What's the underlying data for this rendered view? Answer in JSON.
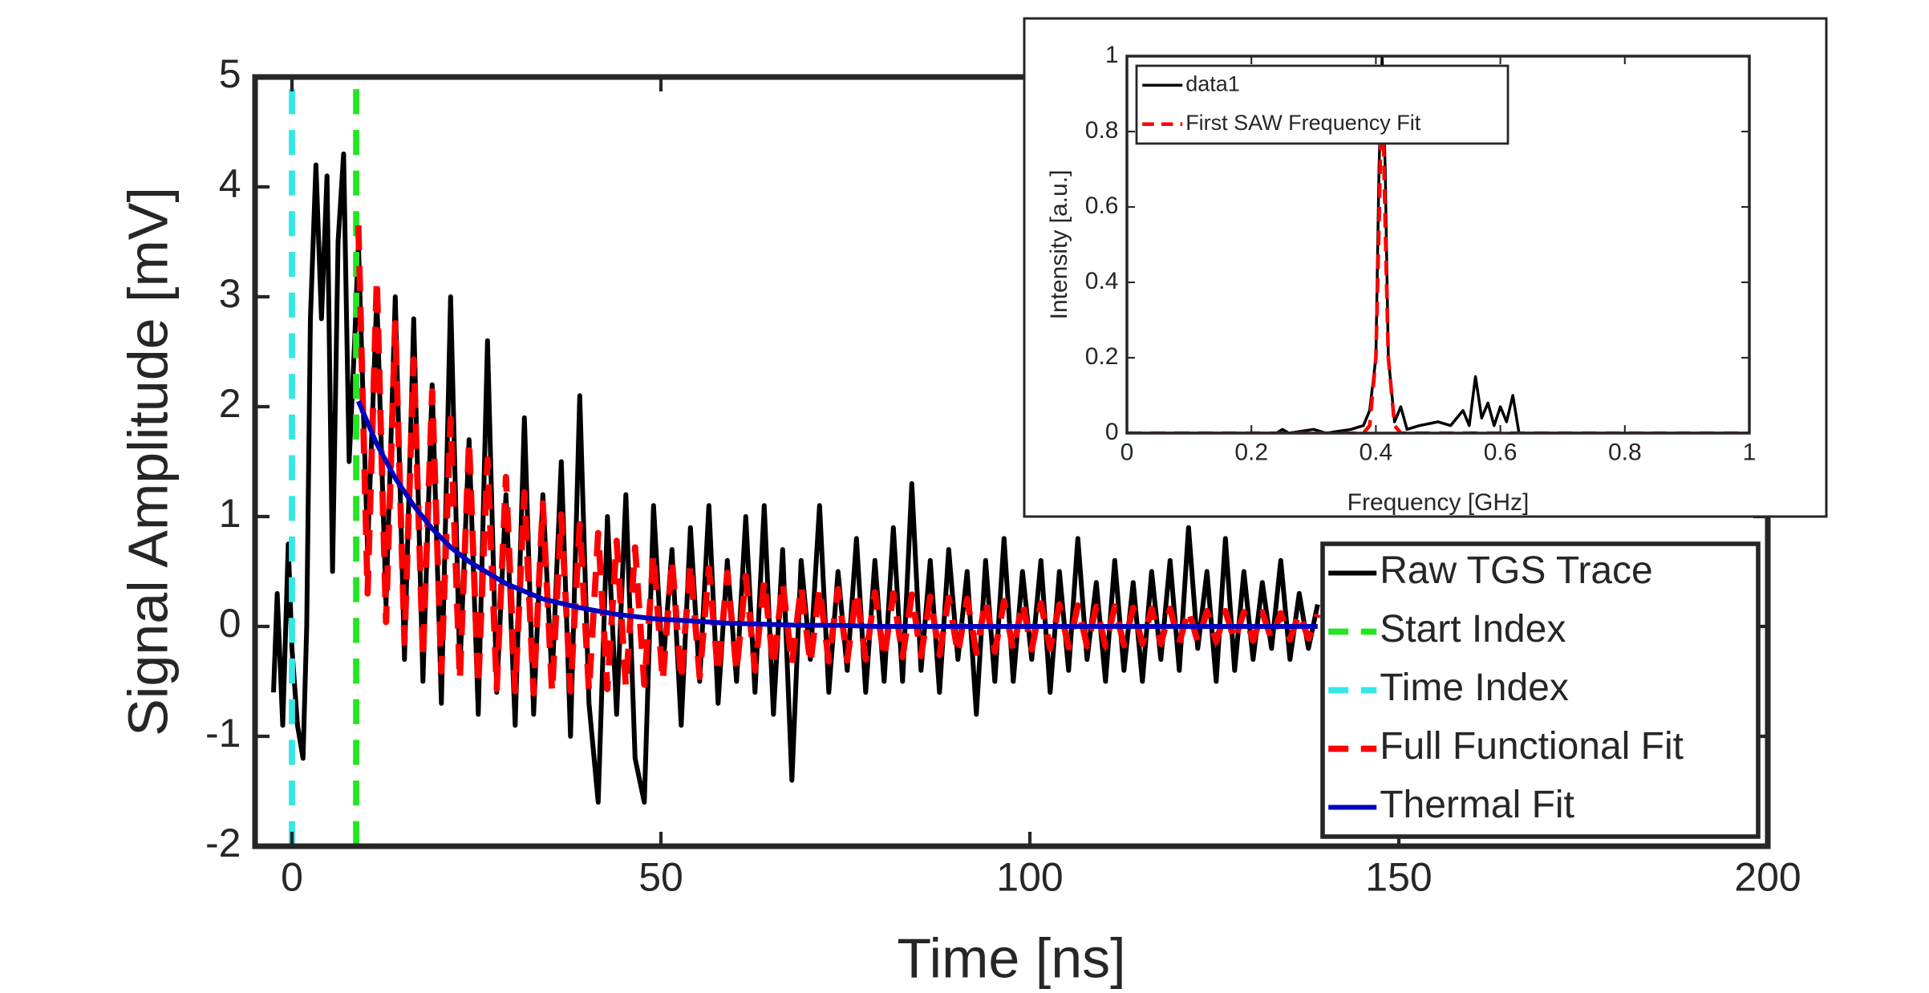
{
  "chart_data": [
    {
      "type": "line",
      "xlabel": "Time [ns]",
      "ylabel": "Signal Amplitude [mV]",
      "xlim": [
        -5,
        200
      ],
      "ylim": [
        -2,
        5
      ],
      "xticks": [
        0,
        50,
        100,
        150,
        200
      ],
      "yticks": [
        -2,
        -1,
        0,
        1,
        2,
        3,
        4,
        5
      ],
      "legend": "southeast",
      "series": [
        {
          "name": "Raw TGS Trace",
          "color": "#000000",
          "style": "solid",
          "x": [
            -2.5,
            -2,
            -1.25,
            -0.5,
            0,
            0.75,
            1.5,
            2,
            2.5,
            3.25,
            4,
            4.75,
            5.5,
            6.25,
            7,
            7.75,
            8.5,
            9,
            10.25,
            11.5,
            12.75,
            14,
            15.25,
            16.5,
            17.75,
            19,
            20.25,
            21.5,
            22.75,
            24,
            25.25,
            26.5,
            27.75,
            29,
            30.25,
            31.5,
            32.75,
            34,
            35.25,
            36.5,
            37.75,
            39,
            40.25,
            41.5,
            42.75,
            44,
            45.25,
            46.5,
            47.75,
            49,
            50.25,
            51.5,
            52.75,
            54,
            55.25,
            56.5,
            57.75,
            59,
            60.25,
            61.5,
            62.75,
            64,
            65.25,
            66.5,
            67.75,
            69,
            70.25,
            71.5,
            72.75,
            74,
            75.25,
            76.5,
            77.75,
            79,
            80.25,
            81.5,
            82.75,
            84,
            85.25,
            86.5,
            87.75,
            89,
            90.25,
            91.5,
            92.75,
            94,
            95.25,
            96.5,
            97.75,
            99,
            100.25,
            101.5,
            102.75,
            104,
            105.25,
            106.5,
            107.75,
            109,
            110.25,
            111.5,
            112.75,
            114,
            115.25,
            116.5,
            117.75,
            119,
            120.25,
            121.5,
            122.75,
            124,
            125.25,
            126.5,
            127.75,
            129,
            130.25,
            131.5,
            132.75,
            134,
            135.25,
            136.5,
            137.75,
            139
          ],
          "values": [
            -0.6,
            0.3,
            -0.9,
            0.75,
            -0.2,
            -0.9,
            -1.2,
            0.0,
            2.8,
            4.2,
            2.8,
            4.1,
            0.5,
            3.5,
            4.3,
            1.5,
            2.6,
            3.5,
            0.7,
            3.0,
            0.2,
            3.0,
            -0.3,
            2.8,
            -0.5,
            2.2,
            -0.7,
            3.0,
            -0.4,
            1.7,
            -0.8,
            2.6,
            -0.6,
            1.2,
            -0.9,
            1.9,
            -0.8,
            1.2,
            -0.5,
            1.5,
            -1.0,
            2.1,
            -0.7,
            -1.6,
            1.0,
            -0.8,
            1.2,
            -1.2,
            -1.6,
            1.1,
            -0.4,
            0.7,
            -0.9,
            0.9,
            -0.5,
            1.1,
            -0.7,
            0.6,
            -0.5,
            1.0,
            -0.6,
            1.1,
            -0.8,
            0.7,
            -1.4,
            0.6,
            -0.3,
            1.1,
            -0.6,
            0.5,
            -0.4,
            0.8,
            -0.6,
            0.6,
            -0.5,
            0.9,
            -0.5,
            1.3,
            -0.4,
            0.6,
            -0.6,
            0.7,
            -0.3,
            0.5,
            -0.8,
            0.6,
            -0.5,
            0.8,
            -0.5,
            0.5,
            -0.3,
            0.6,
            -0.6,
            0.5,
            -0.4,
            0.8,
            -0.3,
            0.4,
            -0.5,
            0.6,
            -0.4,
            0.4,
            -0.5,
            0.5,
            -0.3,
            0.6,
            -0.4,
            0.9,
            -0.2,
            0.5,
            -0.5,
            0.8,
            -0.4,
            0.5,
            -0.3,
            0.4,
            -0.2,
            0.6,
            -0.3,
            0.3,
            -0.2,
            0.2
          ]
        },
        {
          "name": "Start Index",
          "color": "#22e622",
          "style": "dashed",
          "x": [
            8.7,
            8.7
          ],
          "values": [
            -2,
            5
          ]
        },
        {
          "name": "Time Index",
          "color": "#33e8e8",
          "style": "dashed",
          "x": [
            0,
            0
          ],
          "values": [
            -2,
            5
          ]
        },
        {
          "name": "Full Functional Fit",
          "color": "#ff0000",
          "style": "dashed",
          "x": [
            9,
            10.25,
            11.5,
            12.75,
            14,
            15.25,
            16.5,
            17.75,
            19,
            20.25,
            21.5,
            22.75,
            24,
            25.25,
            26.5,
            27.75,
            29,
            30.25,
            31.5,
            32.75,
            34,
            35.25,
            36.5,
            37.75,
            39,
            40.25,
            41.5,
            42.75,
            44,
            45.25,
            46.5,
            47.75,
            49,
            50.25,
            51.5,
            52.75,
            54,
            55.25,
            56.5,
            57.75,
            59,
            60.25,
            61.5,
            62.75,
            64,
            65.25,
            66.5,
            67.75,
            69,
            70.25,
            71.5,
            72.75,
            74,
            75.25,
            76.5,
            77.75,
            79,
            80.25,
            81.5,
            82.75,
            84,
            85.25,
            86.5,
            87.75,
            89,
            90.25,
            91.5,
            92.75,
            94,
            95.25,
            96.5,
            97.75,
            99,
            100.25,
            101.5,
            102.75,
            104,
            105.25,
            106.5,
            107.75,
            109,
            110.25,
            111.5,
            112.75,
            114,
            115.25,
            116.5,
            117.75,
            119,
            120.25,
            121.5,
            122.75,
            124,
            125.25,
            126.5,
            127.75,
            129,
            130.25,
            131.5,
            132.75,
            134,
            135.25,
            136.5,
            137.75,
            139
          ],
          "values": [
            3.65,
            0.3,
            3.16,
            0.04,
            2.76,
            -0.15,
            2.43,
            -0.29,
            2.14,
            -0.41,
            1.89,
            -0.49,
            1.69,
            -0.54,
            1.52,
            -0.57,
            1.36,
            -0.59,
            1.22,
            -0.61,
            1.12,
            -0.6,
            1.02,
            -0.59,
            0.93,
            -0.59,
            0.85,
            -0.57,
            0.78,
            -0.55,
            0.72,
            -0.53,
            0.66,
            -0.5,
            0.61,
            -0.49,
            0.57,
            -0.46,
            0.53,
            -0.43,
            0.49,
            -0.41,
            0.46,
            -0.4,
            0.42,
            -0.37,
            0.4,
            -0.35,
            0.37,
            -0.34,
            0.35,
            -0.32,
            0.34,
            -0.31,
            0.32,
            -0.3,
            0.31,
            -0.29,
            0.3,
            -0.28,
            0.29,
            -0.27,
            0.27,
            -0.26,
            0.26,
            -0.25,
            0.25,
            -0.24,
            0.24,
            -0.23,
            0.23,
            -0.22,
            0.22,
            -0.21,
            0.21,
            -0.2,
            0.2,
            -0.19,
            0.19,
            -0.18,
            0.18,
            -0.18,
            0.18,
            -0.17,
            0.17,
            -0.16,
            0.16,
            -0.16,
            0.16,
            -0.15,
            0.15,
            -0.14,
            0.14,
            -0.14,
            0.14,
            -0.13,
            0.13,
            -0.13,
            0.13,
            -0.12,
            0.12,
            -0.12,
            0.12,
            -0.11,
            0.11
          ]
        },
        {
          "name": "Thermal Fit",
          "color": "#0000c0",
          "style": "solid",
          "x": [
            9,
            11.5,
            14,
            16.5,
            19,
            21.5,
            24,
            29,
            34,
            39,
            44,
            49,
            54,
            59,
            64,
            69,
            74,
            79,
            84,
            89,
            94,
            99,
            104,
            109,
            114,
            119,
            124,
            129,
            134,
            139
          ],
          "values": [
            2.05,
            1.66,
            1.35,
            1.1,
            0.89,
            0.72,
            0.59,
            0.39,
            0.25,
            0.17,
            0.11,
            0.07,
            0.05,
            0.03,
            0.02,
            0.01,
            0.01,
            0,
            0,
            0,
            0,
            0,
            0,
            0,
            0,
            0,
            0,
            0,
            0,
            0
          ]
        }
      ]
    },
    {
      "type": "line",
      "xlabel": "Frequency [GHz]",
      "ylabel": "Intensity [a.u.]",
      "xlim": [
        0,
        1
      ],
      "ylim": [
        0,
        1
      ],
      "xticks": [
        0,
        0.2,
        0.4,
        0.6,
        0.8,
        1
      ],
      "yticks": [
        0,
        0.2,
        0.4,
        0.6,
        0.8,
        1
      ],
      "legend": "northwest",
      "series": [
        {
          "name": "data1",
          "color": "#000000",
          "style": "solid",
          "x": [
            0,
            0.2,
            0.24,
            0.25,
            0.26,
            0.3,
            0.32,
            0.36,
            0.38,
            0.39,
            0.4,
            0.405,
            0.41,
            0.415,
            0.42,
            0.43,
            0.44,
            0.45,
            0.47,
            0.5,
            0.52,
            0.54,
            0.55,
            0.56,
            0.57,
            0.58,
            0.59,
            0.6,
            0.61,
            0.62,
            0.63,
            1
          ],
          "values": [
            0,
            0,
            0,
            0.01,
            0,
            0.01,
            0,
            0.01,
            0.02,
            0.06,
            0.2,
            0.7,
            1.0,
            0.7,
            0.2,
            0.03,
            0.07,
            0.01,
            0.02,
            0.03,
            0.02,
            0.06,
            0.02,
            0.15,
            0.04,
            0.08,
            0.02,
            0.07,
            0.03,
            0.1,
            0,
            0
          ]
        },
        {
          "name": "First SAW Frequency Fit",
          "color": "#ff0000",
          "style": "dashed",
          "x": [
            0,
            0.38,
            0.39,
            0.4,
            0.405,
            0.41,
            0.415,
            0.42,
            0.43,
            0.44,
            1
          ],
          "values": [
            0,
            0,
            0.02,
            0.2,
            0.55,
            0.95,
            0.55,
            0.2,
            0.02,
            0,
            0
          ]
        }
      ]
    }
  ]
}
